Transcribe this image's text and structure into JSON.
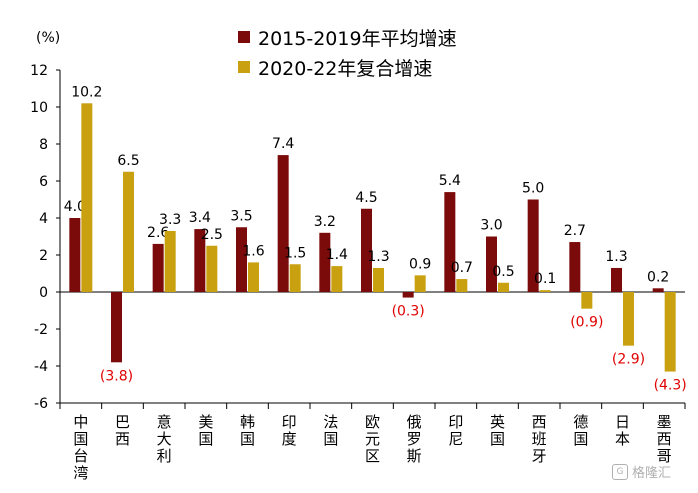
{
  "chart_data": {
    "type": "bar",
    "title": "",
    "ylabel": "(%)",
    "xlabel": "",
    "ylim": [
      -6,
      12
    ],
    "yticks": [
      12,
      10,
      8,
      6,
      4,
      2,
      0,
      -2,
      -4,
      -6
    ],
    "legend_position": "top-center",
    "categories": [
      "中国台湾",
      "巴西",
      "意大利",
      "美国",
      "韩国",
      "印度",
      "法国",
      "欧元区",
      "俄罗斯",
      "印尼",
      "英国",
      "西班牙",
      "德国",
      "日本",
      "墨西哥"
    ],
    "series": [
      {
        "name": "2015-2019年平均增速",
        "color": "#7b0a0a",
        "values": [
          4.0,
          -3.8,
          2.6,
          3.4,
          3.5,
          7.4,
          3.2,
          4.5,
          -0.3,
          5.4,
          3.0,
          5.0,
          2.7,
          1.3,
          0.2
        ],
        "labels": [
          "4.0",
          "(3.8)",
          "2.6",
          "3.4",
          "3.5",
          "7.4",
          "3.2",
          "4.5",
          "(0.3)",
          "5.4",
          "3.0",
          "5.0",
          "2.7",
          "1.3",
          "0.2"
        ]
      },
      {
        "name": "2020-22年复合增速",
        "color": "#c9a010",
        "values": [
          10.2,
          6.5,
          3.3,
          2.5,
          1.6,
          1.5,
          1.4,
          1.3,
          0.9,
          0.7,
          0.5,
          0.1,
          -0.9,
          -2.9,
          -4.3
        ],
        "labels": [
          "10.2",
          "6.5",
          "3.3",
          "2.5",
          "1.6",
          "1.5",
          "1.4",
          "1.3",
          "0.9",
          "0.7",
          "0.5",
          "0.1",
          "(0.9)",
          "(2.9)",
          "(4.3)"
        ]
      }
    ],
    "negative_label_color": "#e00000"
  },
  "watermark": {
    "text": "格隆汇",
    "icon": "glh-logo-icon"
  }
}
